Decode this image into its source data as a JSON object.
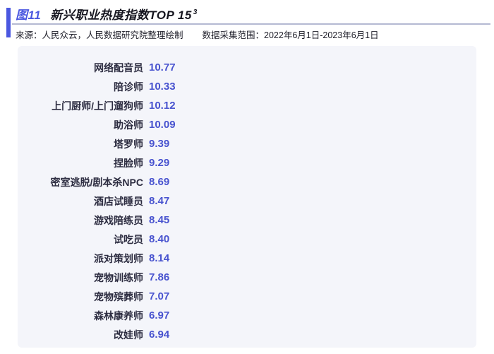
{
  "header": {
    "figure_label": "图11",
    "title": "新兴职业热度指数TOP 15",
    "title_superscript": "3",
    "source": "来源：人民众云，人民数据研究院整理绘制",
    "collection_range": "数据采集范围：2022年6月1日-2023年6月1日"
  },
  "colors": {
    "accent_blue": "#4a57e0",
    "value_text_blue": "#4853cf",
    "bar_gradient_start": "#e9ebfa",
    "bar_gradient_end": "#5c61eb",
    "panel_background": "#f4f5fa",
    "label_text": "#2c2c40",
    "divider": "#b5b9d2"
  },
  "chart_data": {
    "type": "bar",
    "orientation": "horizontal",
    "title": "新兴职业热度指数TOP 15",
    "categories": [
      "网络配音员",
      "陪诊师",
      "上门厨师/上门遛狗师",
      "助浴师",
      "塔罗师",
      "捏脸师",
      "密室逃脱/剧本杀NPC",
      "酒店试睡员",
      "游戏陪练员",
      "试吃员",
      "派对策划师",
      "宠物训练师",
      "宠物殡葬师",
      "森林康养师",
      "改娃师"
    ],
    "values": [
      10.77,
      10.33,
      10.12,
      10.09,
      9.39,
      9.29,
      8.69,
      8.47,
      8.45,
      8.4,
      8.14,
      7.86,
      7.07,
      6.97,
      6.94
    ],
    "value_labels_shown": true,
    "xlabel": "",
    "ylabel": "",
    "xlim_estimate": [
      1.4,
      11.6
    ],
    "grid": false,
    "legend": false,
    "sorted": "descending"
  }
}
